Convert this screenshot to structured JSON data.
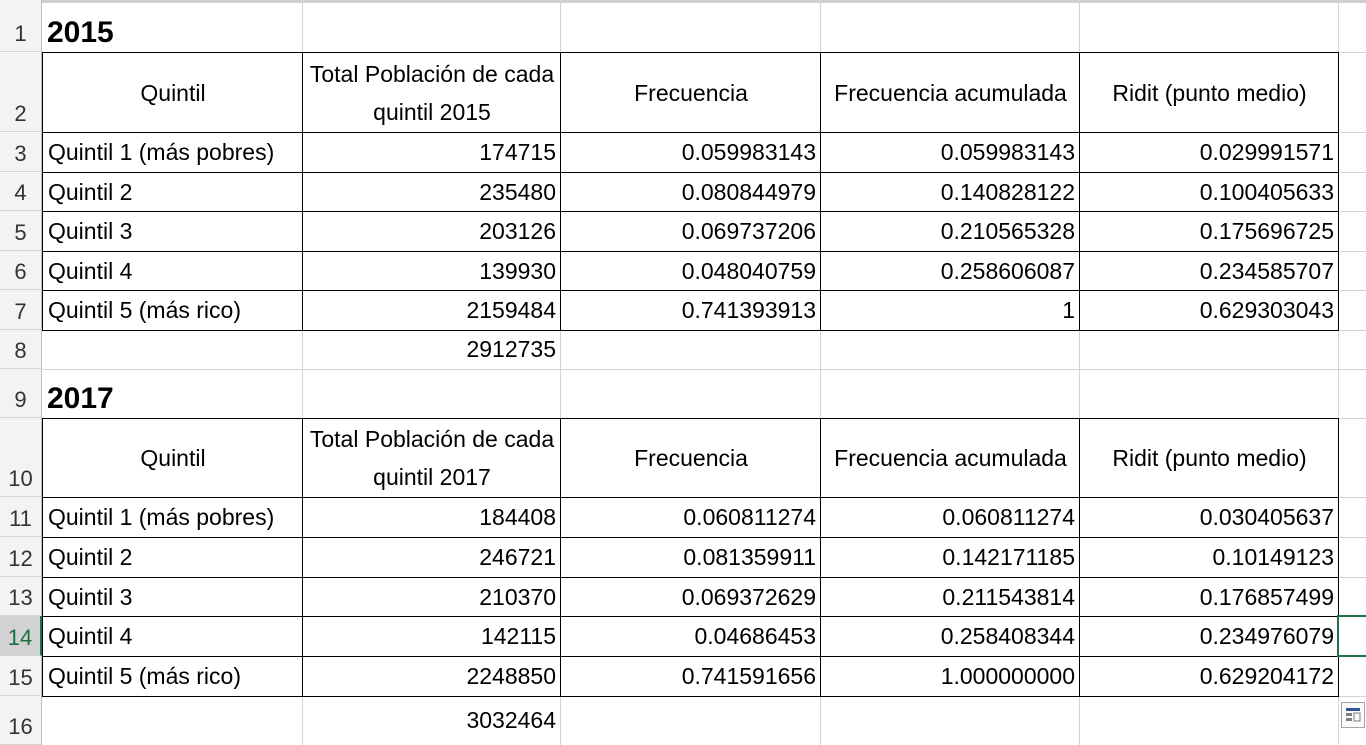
{
  "row_numbers": [
    "1",
    "2",
    "3",
    "4",
    "5",
    "6",
    "7",
    "8",
    "9",
    "10",
    "11",
    "12",
    "13",
    "14",
    "15",
    "16"
  ],
  "section_2015": {
    "title": "2015",
    "headers": [
      "Quintil",
      "Total Población de cada quintil 2015",
      "Frecuencia",
      "Frecuencia acumulada",
      "Ridit (punto medio)"
    ],
    "rows": [
      [
        "Quintil 1 (más pobres)",
        "174715",
        "0.059983143",
        "0.059983143",
        "0.029991571"
      ],
      [
        "Quintil 2",
        "235480",
        "0.080844979",
        "0.140828122",
        "0.100405633"
      ],
      [
        "Quintil 3",
        "203126",
        "0.069737206",
        "0.210565328",
        "0.175696725"
      ],
      [
        "Quintil 4",
        "139930",
        "0.048040759",
        "0.258606087",
        "0.234585707"
      ],
      [
        "Quintil 5 (más rico)",
        "2159484",
        "0.741393913",
        "1",
        "0.629303043"
      ]
    ],
    "total": "2912735"
  },
  "section_2017": {
    "title": "2017",
    "headers": [
      "Quintil",
      "Total Población de cada quintil 2017",
      "Frecuencia",
      "Frecuencia acumulada",
      "Ridit (punto medio)"
    ],
    "rows": [
      [
        "Quintil 1 (más pobres)",
        "184408",
        "0.060811274",
        "0.060811274",
        "0.030405637"
      ],
      [
        "Quintil 2",
        "246721",
        "0.081359911",
        "0.142171185",
        "0.10149123"
      ],
      [
        "Quintil 3",
        "210370",
        "0.069372629",
        "0.211543814",
        "0.176857499"
      ],
      [
        "Quintil 4",
        "142115",
        "0.04686453",
        "0.258408344",
        "0.234976079"
      ],
      [
        "Quintil 5 (más rico)",
        "2248850",
        "0.741591656",
        "1.000000000",
        "0.629204172"
      ]
    ],
    "total": "3032464"
  },
  "selected_row": "14",
  "icons": {
    "quick_analysis": "quick-analysis-icon"
  },
  "colors": {
    "selection": "#217346",
    "grid": "#d4d4d4",
    "header_bg": "#f3f3f3"
  }
}
